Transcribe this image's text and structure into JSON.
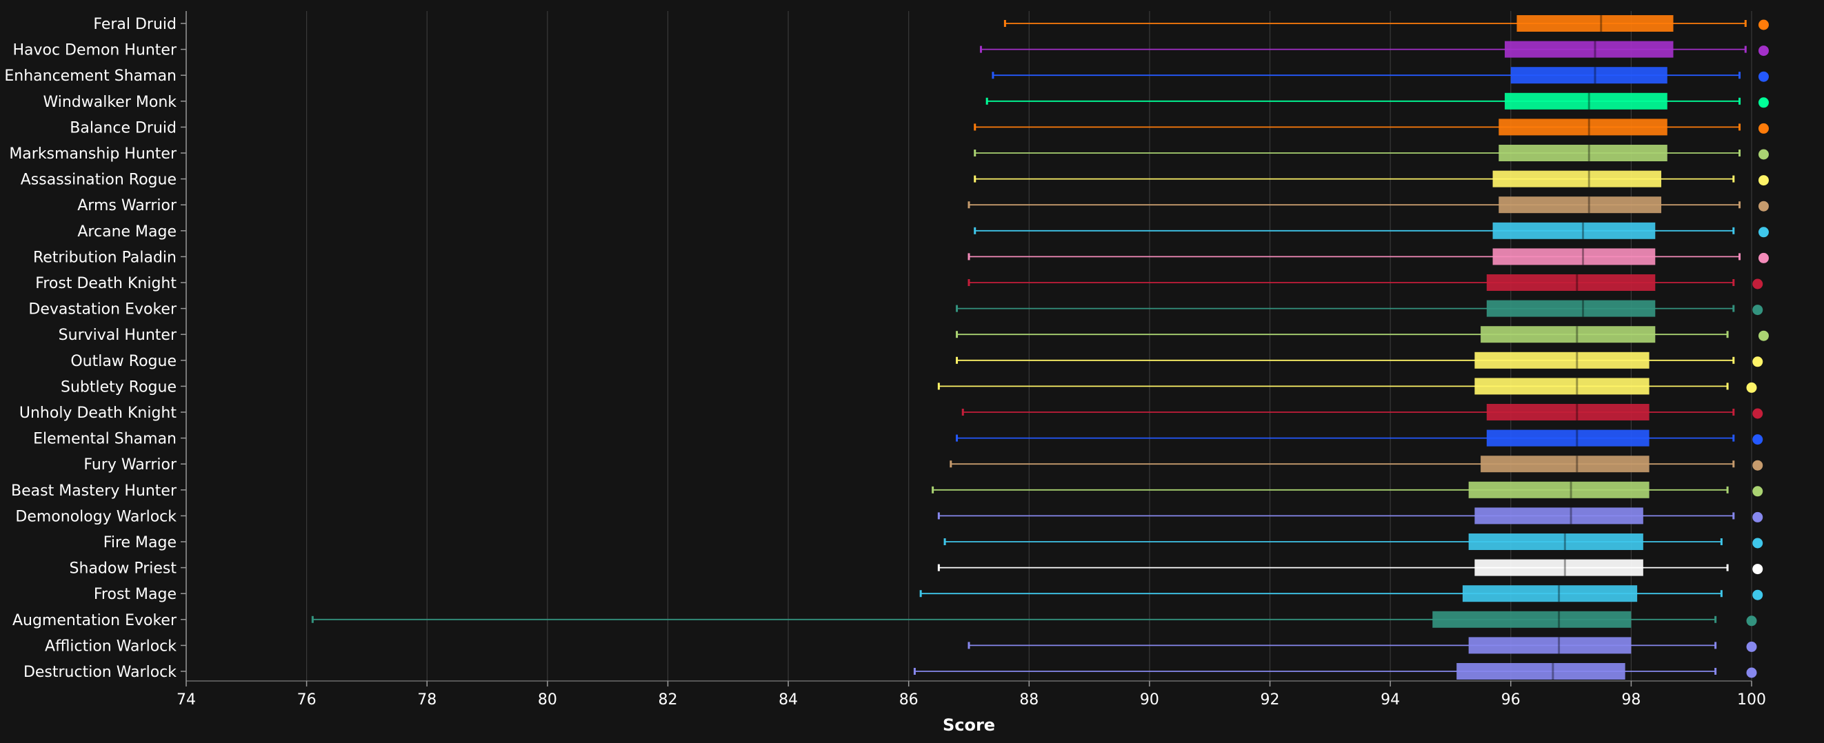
{
  "chart_data": {
    "type": "box",
    "orientation": "horizontal",
    "xlabel": "Score",
    "xlim": [
      74,
      100
    ],
    "xticks": [
      74,
      76,
      78,
      80,
      82,
      84,
      86,
      88,
      90,
      92,
      94,
      96,
      98,
      100
    ],
    "grid": true,
    "background": "#141414",
    "series": [
      {
        "category": "Feral Druid",
        "color": "#ff7c0a",
        "min": 87.6,
        "q1": 96.1,
        "median": 97.5,
        "q3": 98.7,
        "max": 99.9,
        "outlier": 100.2
      },
      {
        "category": "Havoc Demon Hunter",
        "color": "#a330c9",
        "min": 87.2,
        "q1": 95.9,
        "median": 97.4,
        "q3": 98.7,
        "max": 99.9,
        "outlier": 100.2
      },
      {
        "category": "Enhancement Shaman",
        "color": "#2459ff",
        "min": 87.4,
        "q1": 96.0,
        "median": 97.4,
        "q3": 98.6,
        "max": 99.8,
        "outlier": 100.2
      },
      {
        "category": "Windwalker Monk",
        "color": "#00ff98",
        "min": 87.3,
        "q1": 95.9,
        "median": 97.3,
        "q3": 98.6,
        "max": 99.8,
        "outlier": 100.2
      },
      {
        "category": "Balance Druid",
        "color": "#ff7c0a",
        "min": 87.1,
        "q1": 95.8,
        "median": 97.3,
        "q3": 98.6,
        "max": 99.8,
        "outlier": 100.2
      },
      {
        "category": "Marksmanship Hunter",
        "color": "#aad372",
        "min": 87.1,
        "q1": 95.8,
        "median": 97.3,
        "q3": 98.6,
        "max": 99.8,
        "outlier": 100.2
      },
      {
        "category": "Assassination Rogue",
        "color": "#fff468",
        "min": 87.1,
        "q1": 95.7,
        "median": 97.3,
        "q3": 98.5,
        "max": 99.7,
        "outlier": 100.2
      },
      {
        "category": "Arms Warrior",
        "color": "#c69b6d",
        "min": 87.0,
        "q1": 95.8,
        "median": 97.3,
        "q3": 98.5,
        "max": 99.8,
        "outlier": 100.2
      },
      {
        "category": "Arcane Mage",
        "color": "#3fc7eb",
        "min": 87.1,
        "q1": 95.7,
        "median": 97.2,
        "q3": 98.4,
        "max": 99.7,
        "outlier": 100.2
      },
      {
        "category": "Retribution Paladin",
        "color": "#f48cba",
        "min": 87.0,
        "q1": 95.7,
        "median": 97.2,
        "q3": 98.4,
        "max": 99.8,
        "outlier": 100.2
      },
      {
        "category": "Frost Death Knight",
        "color": "#c41e3a",
        "min": 87.0,
        "q1": 95.6,
        "median": 97.1,
        "q3": 98.4,
        "max": 99.7,
        "outlier": 100.1
      },
      {
        "category": "Devastation Evoker",
        "color": "#33937f",
        "min": 86.8,
        "q1": 95.6,
        "median": 97.2,
        "q3": 98.4,
        "max": 99.7,
        "outlier": 100.1
      },
      {
        "category": "Survival Hunter",
        "color": "#aad372",
        "min": 86.8,
        "q1": 95.5,
        "median": 97.1,
        "q3": 98.4,
        "max": 99.6,
        "outlier": 100.2
      },
      {
        "category": "Outlaw Rogue",
        "color": "#fff468",
        "min": 86.8,
        "q1": 95.4,
        "median": 97.1,
        "q3": 98.3,
        "max": 99.7,
        "outlier": 100.1
      },
      {
        "category": "Subtlety Rogue",
        "color": "#fff468",
        "min": 86.5,
        "q1": 95.4,
        "median": 97.1,
        "q3": 98.3,
        "max": 99.6,
        "outlier": 100.0
      },
      {
        "category": "Unholy Death Knight",
        "color": "#c41e3a",
        "min": 86.9,
        "q1": 95.6,
        "median": 97.1,
        "q3": 98.3,
        "max": 99.7,
        "outlier": 100.1
      },
      {
        "category": "Elemental Shaman",
        "color": "#2459ff",
        "min": 86.8,
        "q1": 95.6,
        "median": 97.1,
        "q3": 98.3,
        "max": 99.7,
        "outlier": 100.1
      },
      {
        "category": "Fury Warrior",
        "color": "#c69b6d",
        "min": 86.7,
        "q1": 95.5,
        "median": 97.1,
        "q3": 98.3,
        "max": 99.7,
        "outlier": 100.1
      },
      {
        "category": "Beast Mastery Hunter",
        "color": "#aad372",
        "min": 86.4,
        "q1": 95.3,
        "median": 97.0,
        "q3": 98.3,
        "max": 99.6,
        "outlier": 100.1
      },
      {
        "category": "Demonology Warlock",
        "color": "#8788ee",
        "min": 86.5,
        "q1": 95.4,
        "median": 97.0,
        "q3": 98.2,
        "max": 99.7,
        "outlier": 100.1
      },
      {
        "category": "Fire Mage",
        "color": "#3fc7eb",
        "min": 86.6,
        "q1": 95.3,
        "median": 96.9,
        "q3": 98.2,
        "max": 99.5,
        "outlier": 100.1
      },
      {
        "category": "Shadow Priest",
        "color": "#ffffff",
        "min": 86.5,
        "q1": 95.4,
        "median": 96.9,
        "q3": 98.2,
        "max": 99.6,
        "outlier": 100.1
      },
      {
        "category": "Frost Mage",
        "color": "#3fc7eb",
        "min": 86.2,
        "q1": 95.2,
        "median": 96.8,
        "q3": 98.1,
        "max": 99.5,
        "outlier": 100.1
      },
      {
        "category": "Augmentation Evoker",
        "color": "#33937f",
        "min": 76.1,
        "q1": 94.7,
        "median": 96.8,
        "q3": 98.0,
        "max": 99.4,
        "outlier": 100.0
      },
      {
        "category": "Affliction Warlock",
        "color": "#8788ee",
        "min": 87.0,
        "q1": 95.3,
        "median": 96.8,
        "q3": 98.0,
        "max": 99.4,
        "outlier": 100.0
      },
      {
        "category": "Destruction Warlock",
        "color": "#8788ee",
        "min": 86.1,
        "q1": 95.1,
        "median": 96.7,
        "q3": 97.9,
        "max": 99.4,
        "outlier": 100.0
      }
    ]
  }
}
